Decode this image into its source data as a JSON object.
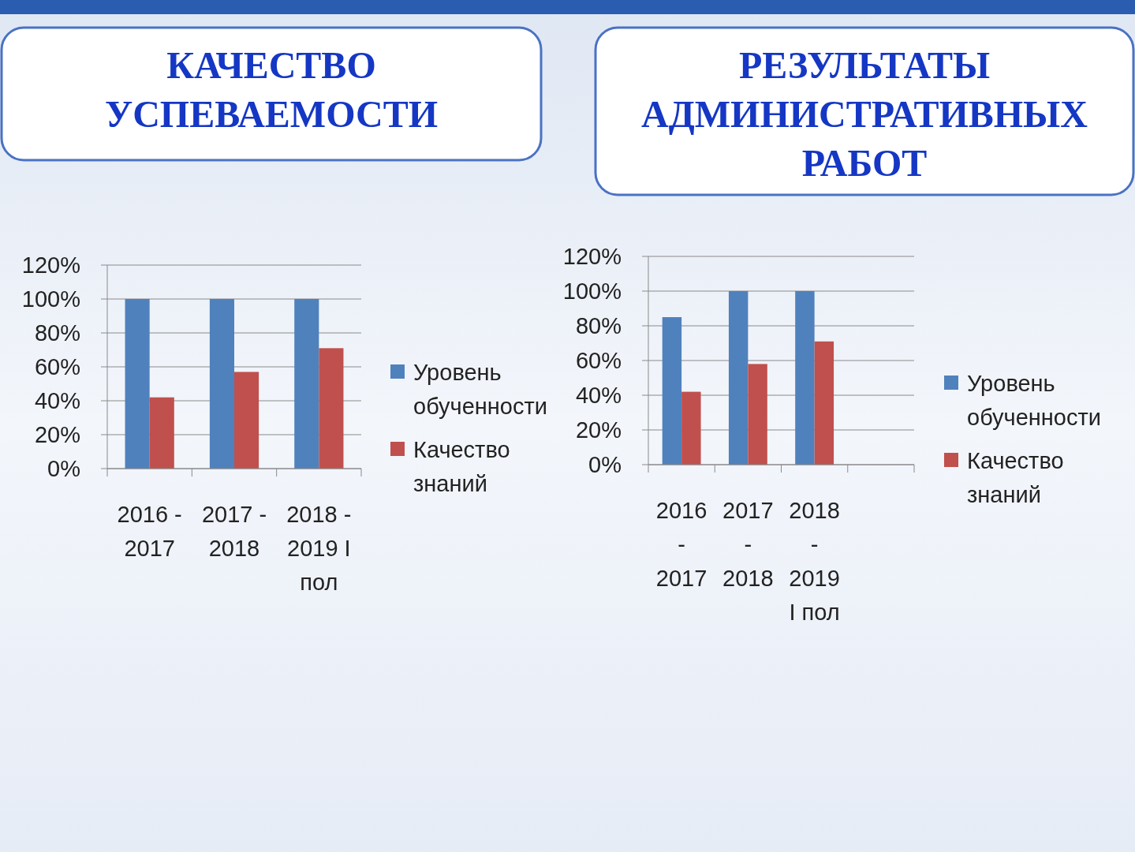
{
  "chart_data": [
    {
      "type": "bar",
      "title": "КАЧЕСТВО УСПЕВАЕМОСТИ",
      "categories": [
        "2016 - 2017",
        "2017 - 2018",
        "2018 - 2019 I пол"
      ],
      "series": [
        {
          "name": "Уровень обученности",
          "color": "#4f81bd",
          "values": [
            100,
            100,
            100
          ]
        },
        {
          "name": "Качество знаний",
          "color": "#c0504d",
          "values": [
            42,
            57,
            71
          ]
        }
      ],
      "ylim": [
        0,
        120
      ],
      "yticks": [
        {
          "value": 0,
          "label": "0%"
        },
        {
          "value": 20,
          "label": "20%"
        },
        {
          "value": 40,
          "label": "40%"
        },
        {
          "value": 60,
          "label": "60%"
        },
        {
          "value": 80,
          "label": "80%"
        },
        {
          "value": 100,
          "label": "100%"
        },
        {
          "value": 120,
          "label": "120%"
        }
      ],
      "grid": "y",
      "legend": "right"
    },
    {
      "type": "bar",
      "title": "РЕЗУЛЬТАТЫ АДМИНИСТРАТИВНЫХ РАБОТ",
      "categories": [
        "2016 - 2017",
        "2017 - 2018",
        "2018 - 2019 I пол",
        null
      ],
      "series": [
        {
          "name": "Уровень обученности",
          "color": "#4f81bd",
          "values": [
            85,
            100,
            100,
            null
          ]
        },
        {
          "name": "Качество знаний",
          "color": "#c0504d",
          "values": [
            42,
            58,
            71,
            null
          ]
        }
      ],
      "ylim": [
        0,
        120
      ],
      "yticks": [
        {
          "value": 0,
          "label": "0%"
        },
        {
          "value": 20,
          "label": "20%"
        },
        {
          "value": 40,
          "label": "40%"
        },
        {
          "value": 60,
          "label": "60%"
        },
        {
          "value": 80,
          "label": "80%"
        },
        {
          "value": 100,
          "label": "100%"
        },
        {
          "value": 120,
          "label": "120%"
        }
      ],
      "grid": "y",
      "legend": "right"
    }
  ]
}
